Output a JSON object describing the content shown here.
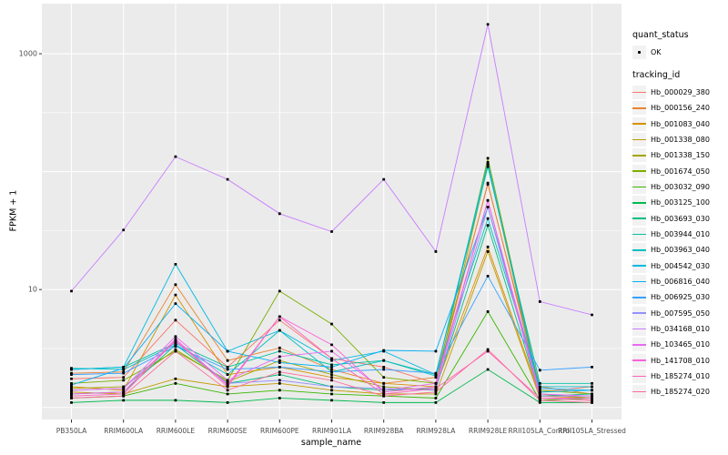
{
  "figure": {
    "y_axis_title": "FPKM + 1",
    "x_axis_title": "sample_name"
  },
  "legend": {
    "quant_title": "quant_status",
    "quant_items": [
      {
        "label": "OK",
        "marker": "black-point"
      }
    ],
    "tracking_title": "tracking_id"
  },
  "chart_data": {
    "type": "line",
    "x_type": "categorical",
    "y_scale": "log10",
    "title": "",
    "xlabel": "sample_name",
    "ylabel": "FPKM + 1",
    "categories": [
      "PB350LA",
      "RRIM600LA",
      "RRIM600LE",
      "RRIM600SE",
      "RRIM600PE",
      "RRIM901LA",
      "RRIM928BA",
      "RRIM928LA",
      "RRIM928LE",
      "RRII105LA_Control",
      "RRII105LA_Stressed"
    ],
    "y_ticks": [
      {
        "value": 1000,
        "label": "1000"
      },
      {
        "value": 10,
        "label": "10"
      }
    ],
    "y_gridlines_major": [
      1,
      10,
      100,
      1000
    ],
    "y_gridlines_minor": [
      3.162,
      31.62,
      316.2
    ],
    "ylim": [
      0.79,
      2660
    ],
    "legend_position": "right",
    "grid": "on",
    "panel_bg": "#EBEBEB",
    "grid_color": "#FFFFFF",
    "point_color": "#000000",
    "point_legend": "OK",
    "series": [
      {
        "name": "Hb_000029_380",
        "color": "#F8766D",
        "values": [
          1.75,
          1.8,
          5.5,
          2.2,
          5.5,
          2.6,
          2.2,
          1.6,
          80,
          1.35,
          1.5
        ]
      },
      {
        "name": "Hb_000156_240",
        "color": "#EA8331",
        "values": [
          1.95,
          2.0,
          11.0,
          2.5,
          3.2,
          2.1,
          1.6,
          1.8,
          78,
          1.5,
          1.3
        ]
      },
      {
        "name": "Hb_001083_040",
        "color": "#D89000",
        "values": [
          1.5,
          1.4,
          9.0,
          1.9,
          2.2,
          1.8,
          1.6,
          1.5,
          23,
          1.25,
          1.2
        ]
      },
      {
        "name": "Hb_001338_080",
        "color": "#C09B00",
        "values": [
          1.35,
          1.3,
          1.75,
          1.5,
          1.6,
          1.4,
          1.3,
          1.3,
          21,
          1.2,
          1.15
        ]
      },
      {
        "name": "Hb_001338_150",
        "color": "#A3A500",
        "values": [
          1.45,
          1.5,
          3.1,
          1.65,
          2.5,
          1.9,
          1.5,
          1.4,
          115,
          1.3,
          1.2
        ]
      },
      {
        "name": "Hb_001674_050",
        "color": "#7CAE00",
        "values": [
          1.6,
          1.7,
          3.0,
          1.7,
          9.7,
          5.1,
          1.8,
          1.6,
          130,
          1.4,
          1.3
        ]
      },
      {
        "name": "Hb_003032_090",
        "color": "#39B600",
        "values": [
          1.2,
          1.25,
          1.6,
          1.3,
          1.4,
          1.3,
          1.25,
          1.2,
          6.5,
          1.15,
          1.2
        ]
      },
      {
        "name": "Hb_003125_100",
        "color": "#00BB4E",
        "values": [
          1.1,
          1.15,
          1.15,
          1.1,
          1.2,
          1.15,
          1.1,
          1.1,
          2.1,
          1.1,
          1.1
        ]
      },
      {
        "name": "Hb_003693_030",
        "color": "#00BF7D",
        "values": [
          1.3,
          1.35,
          3.4,
          1.6,
          1.9,
          1.5,
          1.4,
          1.45,
          35,
          1.25,
          1.3
        ]
      },
      {
        "name": "Hb_003944_010",
        "color": "#00C1A3",
        "values": [
          2.1,
          2.2,
          3.5,
          2.2,
          3.0,
          2.3,
          2.5,
          1.9,
          110,
          1.6,
          1.6
        ]
      },
      {
        "name": "Hb_003963_040",
        "color": "#00BFC4",
        "values": [
          2.15,
          2.1,
          3.4,
          1.9,
          4.5,
          2.0,
          2.5,
          1.85,
          40,
          1.5,
          1.5
        ]
      },
      {
        "name": "Hb_004542_030",
        "color": "#00BAE0",
        "values": [
          2.1,
          2.2,
          16.4,
          3.0,
          4.5,
          2.5,
          3.0,
          1.9,
          120,
          1.35,
          1.4
        ]
      },
      {
        "name": "Hb_006816_040",
        "color": "#00B0F6",
        "values": [
          1.55,
          2.15,
          7.6,
          3.0,
          2.4,
          2.2,
          3.05,
          3.0,
          50,
          1.45,
          1.4
        ]
      },
      {
        "name": "Hb_006925_030",
        "color": "#35A2FF",
        "values": [
          1.9,
          1.95,
          3.3,
          2.1,
          2.2,
          2.0,
          2.1,
          1.95,
          13,
          2.07,
          2.2
        ]
      },
      {
        "name": "Hb_007595_050",
        "color": "#9590FF",
        "values": [
          1.4,
          1.45,
          3.6,
          1.6,
          1.7,
          1.5,
          1.45,
          1.4,
          50,
          1.25,
          1.25
        ]
      },
      {
        "name": "Hb_034168_010",
        "color": "#C77CFF",
        "values": [
          9.7,
          32,
          134,
          86,
          44,
          31,
          86,
          21,
          1775,
          7.9,
          6.1
        ]
      },
      {
        "name": "Hb_103465_010",
        "color": "#E76BF3",
        "values": [
          1.4,
          1.45,
          4.0,
          1.7,
          2.7,
          3.0,
          1.4,
          1.6,
          57,
          1.3,
          1.25
        ]
      },
      {
        "name": "Hb_141708_010",
        "color": "#FA62DB",
        "values": [
          1.3,
          1.35,
          3.8,
          1.55,
          5.9,
          3.4,
          1.35,
          1.5,
          57,
          1.2,
          1.2
        ]
      },
      {
        "name": "Hb_185274_010",
        "color": "#FF62BC",
        "values": [
          1.25,
          1.3,
          3.7,
          1.5,
          5.9,
          2.6,
          1.3,
          1.45,
          3.0,
          1.2,
          1.15
        ]
      },
      {
        "name": "Hb_185274_020",
        "color": "#FF6A98",
        "values": [
          1.2,
          1.25,
          3.0,
          1.4,
          2.0,
          1.7,
          1.25,
          1.35,
          3.1,
          1.15,
          1.1
        ]
      }
    ]
  }
}
